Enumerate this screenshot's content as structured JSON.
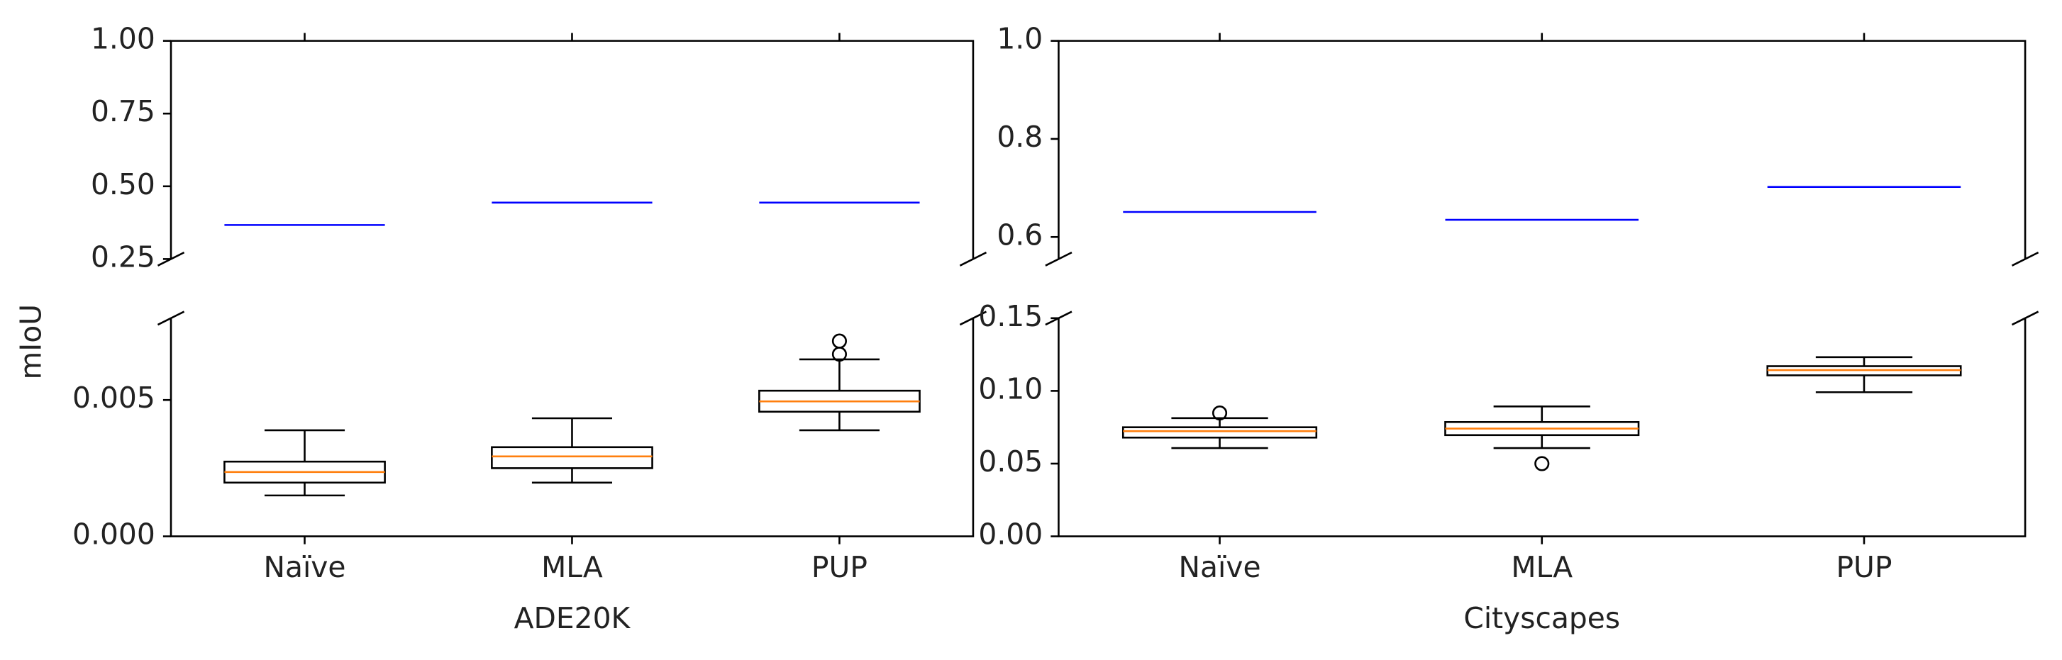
{
  "chart_data": [
    {
      "type": "box",
      "ylabel": "mIoU",
      "xlabel": "ADE20K",
      "categories": [
        "Naïve",
        "MLA",
        "PUP"
      ],
      "top": {
        "ylim": [
          0.25,
          1.0
        ],
        "yticks": [
          0.25,
          {
            "value": 0.5,
            "label": "0.50"
          },
          0.75,
          {
            "value": 1.0,
            "label": "1.00"
          }
        ],
        "values": [
          0.367,
          0.444,
          0.444
        ],
        "color": "#0000ff"
      },
      "bottom": {
        "ylim": [
          0,
          0.008
        ],
        "yticks": [
          {
            "value": 0,
            "label": "0.000"
          },
          {
            "value": 0.005,
            "label": "0.005"
          }
        ],
        "median_color": "#ff7f0e",
        "boxes": [
          {
            "whislo": 0.0015,
            "q1": 0.00197,
            "med": 0.00236,
            "q3": 0.00274,
            "whishi": 0.00389,
            "fliers": []
          },
          {
            "whislo": 0.00197,
            "q1": 0.0025,
            "med": 0.00293,
            "q3": 0.00327,
            "whishi": 0.00433,
            "fliers": []
          },
          {
            "whislo": 0.00389,
            "q1": 0.00457,
            "med": 0.00495,
            "q3": 0.00534,
            "whishi": 0.00649,
            "fliers": [
              0.00668,
              0.00716
            ]
          }
        ]
      }
    },
    {
      "type": "box",
      "xlabel": "Cityscapes",
      "categories": [
        "Naïve",
        "MLA",
        "PUP"
      ],
      "top": {
        "ylim": [
          0.555,
          1.0
        ],
        "yticks": [
          0.6,
          0.8,
          {
            "value": 1.0,
            "label": "1.0"
          }
        ],
        "values": [
          0.651,
          0.635,
          0.702
        ],
        "color": "#0000ff"
      },
      "bottom": {
        "ylim": [
          0,
          0.15
        ],
        "yticks": [
          {
            "value": 0,
            "label": "0.00"
          },
          {
            "value": 0.05,
            "label": "0.05"
          },
          {
            "value": 0.1,
            "label": "0.10"
          },
          {
            "value": 0.15,
            "label": "0.15"
          }
        ],
        "median_color": "#ff7f0e",
        "boxes": [
          {
            "whislo": 0.0607,
            "q1": 0.0679,
            "med": 0.0723,
            "q3": 0.075,
            "whishi": 0.0813,
            "fliers": [
              0.0848
            ]
          },
          {
            "whislo": 0.0607,
            "q1": 0.0696,
            "med": 0.0741,
            "q3": 0.0786,
            "whishi": 0.0893,
            "fliers": [
              0.05
            ]
          },
          {
            "whislo": 0.0991,
            "q1": 0.1107,
            "med": 0.1143,
            "q3": 0.117,
            "whishi": 0.1232,
            "fliers": []
          }
        ]
      }
    }
  ]
}
